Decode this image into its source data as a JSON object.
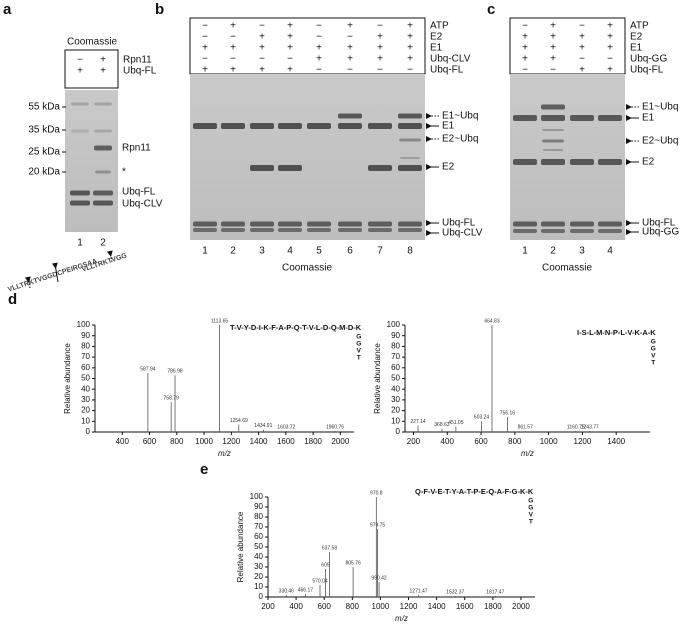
{
  "panel_a": {
    "label": "a",
    "stain": "Coomassie",
    "rows": [
      {
        "name": "Rpn11",
        "signs": [
          "−",
          "+"
        ]
      },
      {
        "name": "Ubq-FL",
        "signs": [
          "+",
          "+"
        ]
      }
    ],
    "markers": [
      "55 kDa",
      "35 kDa",
      "25 kDa",
      "20 kDa"
    ],
    "band_labels": [
      "Rpn11",
      "*",
      "Ubq-FL",
      "Ubq-CLV"
    ],
    "lanes": [
      "1",
      "2"
    ],
    "sequences": [
      "VLLTRKTVGGDCPEIRGSAA",
      "VLLTRKTVGG"
    ]
  },
  "panel_b": {
    "label": "b",
    "stain": "Coomassie",
    "rows": [
      {
        "name": "ATP",
        "signs": [
          "−",
          "+",
          "−",
          "+",
          "−",
          "+",
          "−",
          "+"
        ]
      },
      {
        "name": "E2",
        "signs": [
          "−",
          "−",
          "+",
          "+",
          "−",
          "−",
          "+",
          "+"
        ]
      },
      {
        "name": "E1",
        "signs": [
          "+",
          "+",
          "+",
          "+",
          "+",
          "+",
          "+",
          "+"
        ]
      },
      {
        "name": "Ubq-CLV",
        "signs": [
          "−",
          "−",
          "−",
          "−",
          "+",
          "+",
          "+",
          "+"
        ]
      },
      {
        "name": "Ubq-FL",
        "signs": [
          "+",
          "+",
          "+",
          "+",
          "−",
          "−",
          "−",
          "−"
        ]
      }
    ],
    "band_labels": [
      "E1~Ubq",
      "E1",
      "E2~Ubq",
      "E2",
      "Ubq-FL",
      "Ubq-CLV"
    ],
    "lanes": [
      "1",
      "2",
      "3",
      "4",
      "5",
      "6",
      "7",
      "8"
    ]
  },
  "panel_c": {
    "label": "c",
    "stain": "Coomassie",
    "rows": [
      {
        "name": "ATP",
        "signs": [
          "−",
          "+",
          "−",
          "+"
        ]
      },
      {
        "name": "E2",
        "signs": [
          "+",
          "+",
          "+",
          "+"
        ]
      },
      {
        "name": "E1",
        "signs": [
          "+",
          "+",
          "+",
          "+"
        ]
      },
      {
        "name": "Ubq-GG",
        "signs": [
          "+",
          "+",
          "−",
          "−"
        ]
      },
      {
        "name": "Ubq-FL",
        "signs": [
          "−",
          "−",
          "+",
          "+"
        ]
      }
    ],
    "band_labels": [
      "E1~Ubq",
      "E1",
      "E2~Ubq",
      "E2",
      "Ubq-FL",
      "Ubq-GG"
    ],
    "lanes": [
      "1",
      "2",
      "3",
      "4"
    ]
  },
  "panel_d": {
    "label": "d",
    "spectra": [
      {
        "sequence": "T-V-Y-D-I-K-F-A-P-Q-T-V-L-D-Q-M-D-K",
        "branch": [
          "G",
          "G",
          "V",
          "T"
        ],
        "xlabel": "m/z",
        "ylabel": "Relative abundance",
        "xlim": [
          200,
          2100
        ],
        "ylim": [
          0,
          100
        ],
        "xticks": [
          400,
          600,
          800,
          1000,
          1200,
          1400,
          1600,
          1800,
          2000
        ],
        "yticks": [
          0,
          10,
          20,
          30,
          40,
          50,
          60,
          70,
          80,
          90,
          100
        ],
        "peaks": [
          {
            "mz": 587.94,
            "abundance": 55
          },
          {
            "mz": 786.98,
            "abundance": 53
          },
          {
            "mz": 758.79,
            "abundance": 28
          },
          {
            "mz": 1113.65,
            "abundance": 100
          },
          {
            "mz": 1254.69,
            "abundance": 7
          },
          {
            "mz": 1434.91,
            "abundance": 2
          },
          {
            "mz": 1603.72,
            "abundance": 1
          },
          {
            "mz": 1960.76,
            "abundance": 1
          }
        ]
      },
      {
        "sequence": "I-S-L-M-N-P-L-V-K-A-K",
        "branch": [
          "G",
          "G",
          "V",
          "T"
        ],
        "xlabel": "m/z",
        "ylabel": "Relative abundance",
        "xlim": [
          150,
          1600
        ],
        "ylim": [
          0,
          100
        ],
        "xticks": [
          200,
          400,
          600,
          800,
          1000,
          1200,
          1400
        ],
        "yticks": [
          0,
          10,
          20,
          30,
          40,
          50,
          60,
          70,
          80,
          90,
          100
        ],
        "peaks": [
          {
            "mz": 227.14,
            "abundance": 6
          },
          {
            "mz": 368.63,
            "abundance": 3
          },
          {
            "mz": 451.05,
            "abundance": 5
          },
          {
            "mz": 603.24,
            "abundance": 10
          },
          {
            "mz": 664.83,
            "abundance": 100
          },
          {
            "mz": 756.16,
            "abundance": 14
          },
          {
            "mz": 861.57,
            "abundance": 1
          },
          {
            "mz": 1160.75,
            "abundance": 1
          },
          {
            "mz": 1243.77,
            "abundance": 1
          }
        ]
      }
    ]
  },
  "panel_e": {
    "label": "e",
    "spectrum": {
      "sequence": "Q-F-V-E-T-Y-A-T-P-E-Q-A-F-G-K-K",
      "branch": [
        "G",
        "G",
        "V",
        "T"
      ],
      "xlabel": "m/z",
      "ylabel": "Relative abundance",
      "xlim": [
        200,
        2100
      ],
      "ylim": [
        0,
        100
      ],
      "xticks": [
        200,
        400,
        600,
        800,
        1000,
        1200,
        1400,
        1600,
        1800,
        2000
      ],
      "yticks": [
        0,
        10,
        20,
        30,
        40,
        50,
        60,
        70,
        80,
        90,
        100
      ],
      "peaks": [
        {
          "mz": 330.46,
          "abundance": 2
        },
        {
          "mz": 466.17,
          "abundance": 3
        },
        {
          "mz": 570.04,
          "abundance": 12
        },
        {
          "mz": 609.0,
          "abundance": 28
        },
        {
          "mz": 637.58,
          "abundance": 45
        },
        {
          "mz": 805.76,
          "abundance": 30
        },
        {
          "mz": 970.8,
          "abundance": 100
        },
        {
          "mz": 979.75,
          "abundance": 68
        },
        {
          "mz": 990.42,
          "abundance": 15
        },
        {
          "mz": 1271.47,
          "abundance": 2
        },
        {
          "mz": 1532.37,
          "abundance": 1
        },
        {
          "mz": 1817.47,
          "abundance": 1
        }
      ]
    }
  }
}
